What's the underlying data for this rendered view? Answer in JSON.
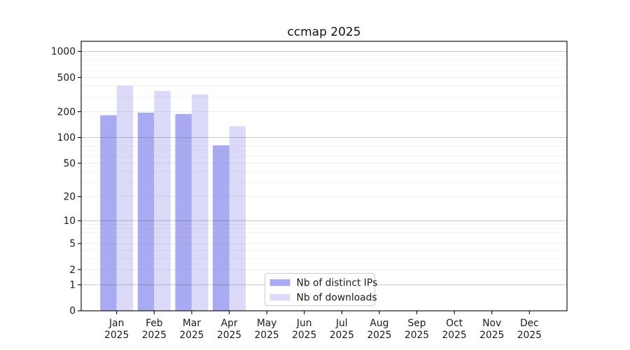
{
  "page": {
    "background": "#ffffff"
  },
  "chart_data": {
    "type": "bar",
    "title": "ccmap 2025",
    "categories": [
      "Jan",
      "Feb",
      "Mar",
      "Apr",
      "May",
      "Jun",
      "Jul",
      "Aug",
      "Sep",
      "Oct",
      "Nov",
      "Dec"
    ],
    "x_year": "2025",
    "series": [
      {
        "name": "Nb of distinct IPs",
        "color": "#aaaaf2",
        "values": [
          182,
          195,
          188,
          81,
          0,
          0,
          0,
          0,
          0,
          0,
          0,
          0
        ]
      },
      {
        "name": "Nb of downloads",
        "color": "#dbdbf9",
        "values": [
          400,
          348,
          318,
          136,
          0,
          0,
          0,
          0,
          0,
          0,
          0,
          0
        ]
      }
    ],
    "y_scale": "log1p",
    "y_ticks": [
      0,
      1,
      2,
      5,
      10,
      20,
      50,
      100,
      200,
      500,
      1000
    ],
    "y_minor_gridlines": [
      3,
      4,
      6,
      7,
      8,
      9,
      30,
      40,
      60,
      70,
      80,
      90,
      300,
      400,
      600,
      700,
      800,
      900
    ],
    "ylim": [
      0,
      1310
    ],
    "grid": true,
    "grid_on_top": true,
    "legend_position": "lower-center",
    "legend_frame_color": "#cccccc",
    "axis_color": "#000000",
    "decade_grid_color": "rgba(80,80,80,0.32)",
    "major_grid_color": "rgba(128,128,128,0.17)",
    "minor_grid_color": "rgba(128,128,128,0.10)"
  }
}
